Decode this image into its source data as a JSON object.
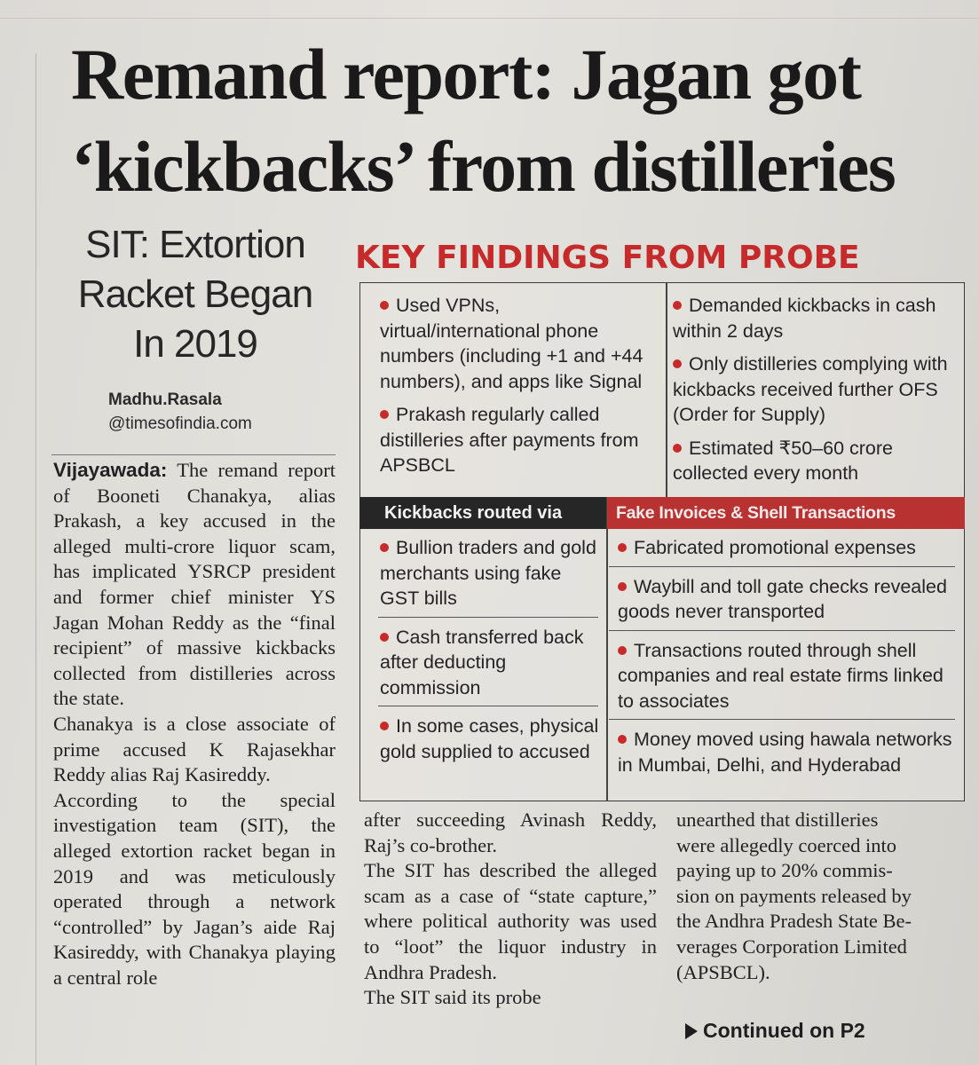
{
  "headline": {
    "line1": "Remand report: Jagan got",
    "line2": "‘kickbacks’ from distilleries"
  },
  "subhead": {
    "line1": "SIT: Extortion",
    "line2": "Racket Began",
    "line3": "In 2019"
  },
  "byline": {
    "name": "Madhu.Rasala",
    "handle": "@timesofindia.com"
  },
  "article": {
    "dateline": "Vijayawada:",
    "p1": " The remand report of Booneti Chanakya, alias Prakash, a key accused in the alleged multi-crore liquor scam, has implicated YSRCP president and former chief minister YS Jagan Mohan Reddy as the “final recipient” of massive kickbacks collected from distilleries across the state.",
    "p2": "Chanakya is a close associate of prime accused K Rajasekhar Reddy alias Raj Kasireddy.",
    "p3": "According to the special investigation team (SIT), the alleged extortion racket began in 2019 and was meticulously operated through a network “controlled” by Jagan’s aide Raj Kasireddy, with Chanakya playing a central role",
    "col2_p1": "after succeeding Avinash Reddy, Raj’s co-brother.",
    "col2_p2": "The SIT has described the alleged scam as a case of “state capture,” where political authority was used to “loot” the liquor industry in Andhra Pradesh.",
    "col2_p3": "The SIT said its probe",
    "col3_l1": "unearthed that distilleries",
    "col3_l2": "were allegedly coerced into",
    "col3_l3": "paying up to 20% commis-",
    "col3_l4": "sion on payments released by",
    "col3_l5": "the Andhra Pradesh State Be-",
    "col3_l6": "verages Corporation Limited",
    "col3_l7": "(APSBCL).",
    "continued": "Continued on P2"
  },
  "findings": {
    "title": "KEY FINDINGS FROM PROBE",
    "top_left": [
      "Used VPNs, virtual/international phone numbers (including +1 and +44 numbers), and apps like Signal",
      "Prakash regularly called distilleries after payments from APSBCL"
    ],
    "top_right": [
      "Demanded kickbacks in cash within 2 days",
      "Only distilleries complying with kickbacks received further OFS (Order for Supply)",
      "Estimated ₹50–60 crore collected every month"
    ],
    "kickbacks_header": "Kickbacks routed via",
    "kickbacks": [
      "Bullion traders and gold merchants using fake GST bills",
      "Cash transferred back after deducting commission",
      "In some cases, physical gold supplied to accused"
    ],
    "invoices_header": "Fake Invoices & Shell Transactions",
    "invoices": [
      "Fabricated promotional expenses",
      "Waybill and toll gate checks revealed goods never transported",
      "Transactions routed through shell companies and real estate firms linked to associates",
      "Money moved using hawala networks in Mumbai, Delhi, and Hyderabad"
    ]
  },
  "colors": {
    "accent_red": "#c62a2a",
    "header_dark": "#262626",
    "header_red": "#b83232"
  }
}
